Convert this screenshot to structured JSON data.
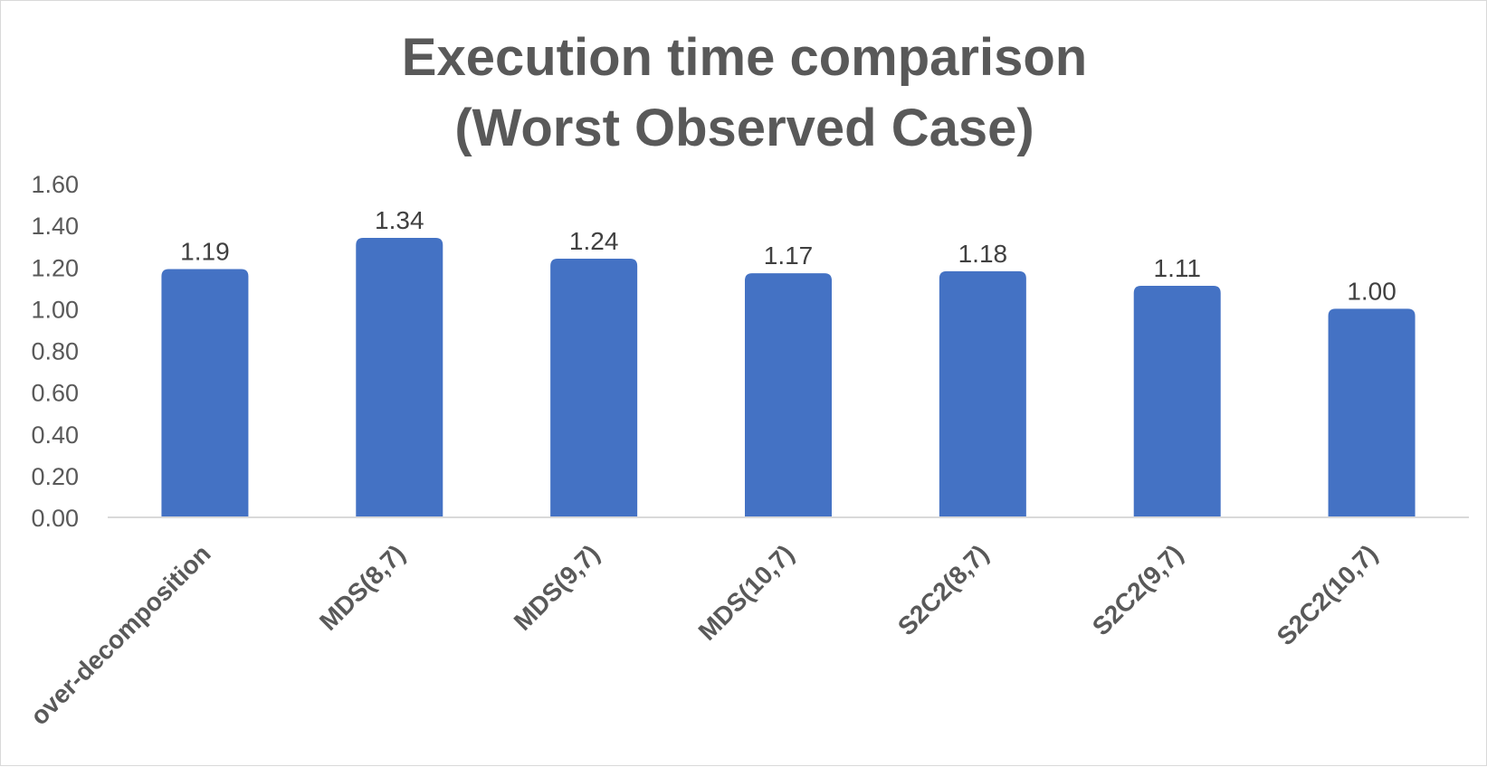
{
  "chart_data": {
    "type": "bar",
    "title": [
      "Execution time comparison",
      "(Worst Observed Case)"
    ],
    "xlabel": "",
    "ylabel": "",
    "categories": [
      "over-decomposition",
      "MDS(8,7)",
      "MDS(9,7)",
      "MDS(10,7)",
      "S2C2(8,7)",
      "S2C2(9,7)",
      "S2C2(10,7)"
    ],
    "values": [
      1.19,
      1.34,
      1.24,
      1.17,
      1.18,
      1.11,
      1.0
    ],
    "value_labels": [
      "1.19",
      "1.34",
      "1.24",
      "1.17",
      "1.18",
      "1.11",
      "1.00"
    ],
    "ylim": [
      0,
      1.6
    ],
    "yticks": [
      "0.00",
      "0.20",
      "0.40",
      "0.60",
      "0.80",
      "1.00",
      "1.20",
      "1.40",
      "1.60"
    ],
    "grid": false,
    "legend": "none",
    "bar_color": "#4472C4"
  }
}
